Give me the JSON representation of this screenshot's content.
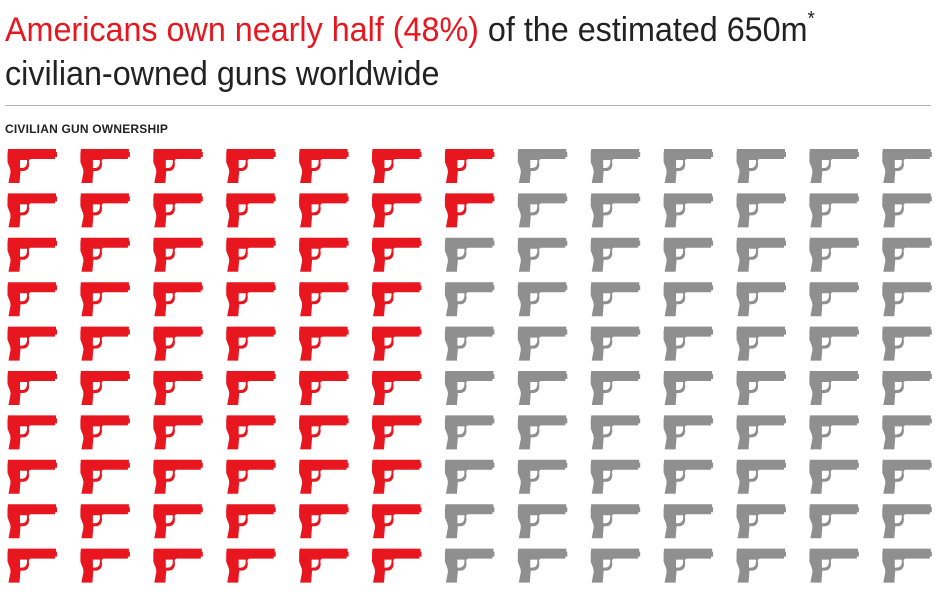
{
  "header": {
    "headline_accent": "Americans own nearly half (48%)",
    "headline_rest": " of the estimated 650m",
    "headline_mark": "*",
    "headline_line2": "civilian-owned guns worldwide"
  },
  "chart_label": "CIVILIAN GUN OWNERSHIP",
  "colors": {
    "highlight": "#e8171f",
    "base": "#8f8f8f"
  },
  "chart_data": {
    "type": "pictogram",
    "icon": "pistol-icon",
    "columns": 13,
    "rows": 10,
    "total_icons": 130,
    "highlighted_icons": 62,
    "highlighted_percent": 48,
    "total_guns_millions": 650,
    "fill_order": "column-major, top to bottom, left to right"
  }
}
